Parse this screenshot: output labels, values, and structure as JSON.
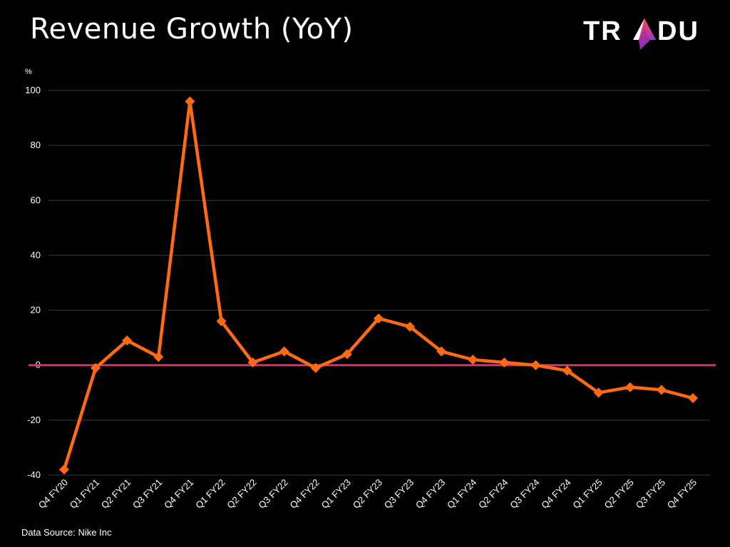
{
  "title": "Revenue Growth (YoY)",
  "logo": {
    "name": "TRADU",
    "left_text": "TR",
    "right_text": "DU",
    "accent_start": "#ff3b3b",
    "accent_end": "#8a2be2"
  },
  "source": "Data Source: Nike Inc",
  "colors": {
    "background": "#000000",
    "series": "#ff6a13",
    "zero_line": "#d6336c",
    "grid": "#3a3a3a",
    "text": "#ffffff"
  },
  "chart_data": {
    "type": "line",
    "title": "Revenue Growth (YoY)",
    "ylabel": "%",
    "xlabel": "",
    "ylim": [
      -40,
      100
    ],
    "yticks": [
      -40,
      -20,
      0,
      20,
      40,
      60,
      80,
      100
    ],
    "grid": true,
    "legend": "none",
    "marker": "diamond",
    "categories": [
      "Q4 FY20",
      "Q1 FY21",
      "Q2 FY21",
      "Q3 FY21",
      "Q4 FY21",
      "Q1 FY22",
      "Q2 FY22",
      "Q3 FY22",
      "Q4 FY22",
      "Q1 FY23",
      "Q2 FY23",
      "Q3 FY23",
      "Q4 FY23",
      "Q1 FY24",
      "Q2 FY24",
      "Q3 FY24",
      "Q4 FY24",
      "Q1 FY25",
      "Q2 FY25",
      "Q3 FY25",
      "Q4 FY25"
    ],
    "series": [
      {
        "values": [
          -38,
          -1,
          9,
          3,
          96,
          16,
          1,
          5,
          -1,
          4,
          17,
          14,
          5,
          2,
          1,
          0,
          -2,
          -10,
          -8,
          -9,
          -12
        ]
      }
    ]
  }
}
